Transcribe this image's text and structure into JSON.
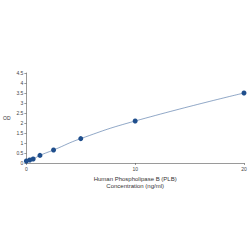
{
  "chart_data": {
    "type": "line",
    "xlabel": "Human Phospholipase B (PLB)\nConcentration (ng/ml)",
    "ylabel": "OD",
    "x": [
      0,
      0.3125,
      0.625,
      1.25,
      2.5,
      5,
      10,
      20
    ],
    "values": [
      0.1,
      0.15,
      0.2,
      0.38,
      0.65,
      1.22,
      2.1,
      3.5
    ],
    "color": "#1f4e8c",
    "marker": "circle",
    "line_style": "solid",
    "xlim": [
      0,
      20
    ],
    "xticks": [
      0,
      10,
      20
    ],
    "ylim": [
      0,
      4.5
    ],
    "yticks": [
      0,
      0.5,
      1,
      1.5,
      2,
      2.5,
      3,
      3.5,
      4,
      4.5
    ],
    "grid": false
  }
}
